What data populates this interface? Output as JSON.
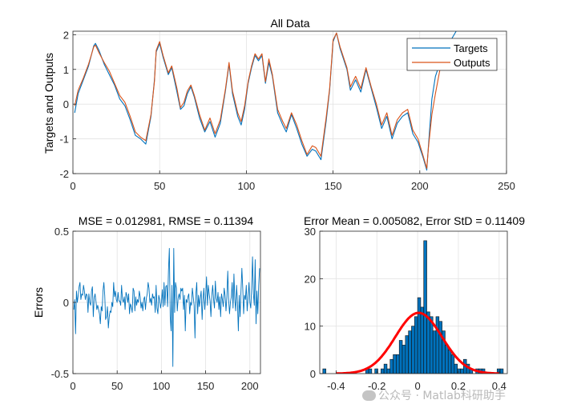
{
  "chart_data": [
    {
      "type": "line",
      "title": "All Data",
      "xlabel": "",
      "ylabel": "Targets and Outputs",
      "xlim": [
        0,
        250
      ],
      "ylim": [
        -2,
        2.1
      ],
      "xticks": [
        0,
        50,
        100,
        150,
        200,
        250
      ],
      "yticks": [
        -2,
        -1,
        0,
        1,
        2
      ],
      "grid": true,
      "legend": "top-right",
      "series": [
        {
          "name": "Targets",
          "color": "#0072BD",
          "x": [
            1,
            3,
            6,
            9,
            12,
            13,
            15,
            18,
            21,
            24,
            27,
            30,
            33,
            36,
            39,
            42,
            45,
            47,
            48,
            50,
            52,
            55,
            57,
            60,
            62,
            64,
            66,
            68,
            70,
            73,
            76,
            79,
            82,
            85,
            88,
            90,
            92,
            95,
            97,
            99,
            101,
            103,
            105,
            107,
            109,
            111,
            113,
            115,
            118,
            121,
            123,
            126,
            129,
            132,
            135,
            138,
            140,
            143,
            146,
            148,
            150,
            152,
            154,
            156,
            158,
            160,
            163,
            166,
            169,
            172,
            175,
            178,
            181,
            184,
            187,
            190,
            193,
            196,
            199,
            202,
            204,
            205,
            207,
            209,
            212,
            215,
            218,
            221
          ],
          "y": [
            -0.25,
            0.3,
            0.7,
            1.1,
            1.68,
            1.75,
            1.55,
            1.15,
            0.85,
            0.55,
            0.15,
            -0.05,
            -0.45,
            -0.9,
            -1.0,
            -1.15,
            -0.35,
            0.7,
            1.5,
            1.75,
            1.35,
            0.85,
            1.05,
            0.35,
            -0.15,
            -0.05,
            0.3,
            0.5,
            0.2,
            -0.4,
            -0.8,
            -0.5,
            -0.95,
            -0.55,
            0.4,
            1.15,
            0.3,
            -0.35,
            -0.6,
            -0.15,
            0.6,
            1.05,
            1.4,
            1.25,
            1.4,
            0.6,
            1.2,
            0.8,
            -0.25,
            -0.6,
            -0.8,
            -0.3,
            -0.7,
            -1.15,
            -1.5,
            -1.3,
            -1.35,
            -1.6,
            -0.5,
            0.4,
            1.8,
            2.05,
            1.6,
            1.3,
            1.0,
            0.4,
            0.7,
            0.35,
            1.0,
            0.45,
            -0.1,
            -0.7,
            -0.35,
            -1.0,
            -0.55,
            -0.35,
            -0.25,
            -0.85,
            -1.1,
            -1.55,
            -1.9,
            -1.2,
            0.15,
            0.8,
            1.25,
            1.6,
            1.85,
            2.1
          ]
        },
        {
          "name": "Outputs",
          "color": "#D95319",
          "x": [
            1,
            3,
            6,
            9,
            12,
            13,
            15,
            18,
            21,
            24,
            27,
            30,
            33,
            36,
            39,
            42,
            45,
            47,
            48,
            50,
            52,
            55,
            57,
            60,
            62,
            64,
            66,
            68,
            70,
            73,
            76,
            79,
            82,
            85,
            88,
            90,
            92,
            95,
            97,
            99,
            101,
            103,
            105,
            107,
            109,
            111,
            113,
            115,
            118,
            121,
            123,
            126,
            129,
            132,
            135,
            138,
            140,
            143,
            146,
            148,
            150,
            152,
            154,
            156,
            158,
            160,
            163,
            166,
            169,
            172,
            175,
            178,
            181,
            184,
            187,
            190,
            193,
            196,
            199,
            202,
            204,
            205,
            207,
            209,
            212
          ],
          "y": [
            -0.05,
            0.4,
            0.75,
            1.15,
            1.65,
            1.7,
            1.48,
            1.2,
            0.95,
            0.6,
            0.25,
            0.05,
            -0.35,
            -0.8,
            -0.95,
            -1.05,
            -0.3,
            0.65,
            1.55,
            1.8,
            1.4,
            0.9,
            1.1,
            0.45,
            -0.1,
            0.05,
            0.38,
            0.55,
            0.25,
            -0.3,
            -0.75,
            -0.4,
            -0.85,
            -0.45,
            0.45,
            1.2,
            0.38,
            -0.25,
            -0.5,
            -0.05,
            0.65,
            1.1,
            1.45,
            1.3,
            1.45,
            0.65,
            1.3,
            0.85,
            -0.15,
            -0.5,
            -0.7,
            -0.25,
            -0.6,
            -1.05,
            -1.45,
            -1.2,
            -1.25,
            -1.5,
            -0.4,
            0.45,
            1.85,
            2.05,
            1.65,
            1.35,
            1.05,
            0.5,
            0.8,
            0.45,
            1.05,
            0.5,
            0.0,
            -0.6,
            -0.25,
            -0.9,
            -0.45,
            -0.25,
            -0.15,
            -0.75,
            -1.0,
            -1.5,
            -1.85,
            -1.25,
            -0.3,
            0.3,
            1.1
          ]
        }
      ]
    },
    {
      "type": "line",
      "title": "MSE = 0.012981, RMSE = 0.11394",
      "xlabel": "",
      "ylabel": "Errors",
      "xlim": [
        0,
        212
      ],
      "ylim": [
        -0.5,
        0.5
      ],
      "xticks": [
        0,
        50,
        100,
        150,
        200
      ],
      "yticks": [
        -0.5,
        0,
        0.5
      ],
      "grid": true,
      "series": [
        {
          "color": "#0072BD",
          "y": [
            -0.05,
            0.02,
            -0.22,
            0.08,
            0.0,
            0.05,
            0.11,
            0.14,
            0.02,
            0.06,
            0.05,
            0.12,
            0.08,
            0.02,
            0.06,
            0.05,
            -0.07,
            0.06,
            0.0,
            -0.02,
            0.08,
            0.11,
            -0.1,
            0.03,
            0.06,
            0.01,
            -0.05,
            -0.02,
            -0.05,
            -0.08,
            -0.15,
            -0.03,
            -0.06,
            0.08,
            0.14,
            0.05,
            -0.12,
            -0.1,
            -0.03,
            -0.18,
            -0.1,
            -0.06,
            -0.07,
            0.0,
            -0.03,
            0.14,
            0.04,
            0.08,
            0.02,
            0.0,
            0.07,
            0.01,
            0.01,
            -0.02,
            0.12,
            0.02,
            0.0,
            0.04,
            -0.05,
            0.07,
            0.05,
            0.0,
            0.06,
            -0.08,
            -0.01,
            -0.03,
            -0.07,
            0.1,
            0.08,
            -0.06,
            0.04,
            -0.02,
            0.02,
            0.0,
            0.08,
            0.04,
            -0.04,
            0.0,
            -0.06,
            0.02,
            0.04,
            -0.05,
            0.03,
            0.06,
            0.14,
            0.1,
            0.0,
            0.03,
            -0.02,
            0.06,
            0.03,
            0.04,
            -0.07,
            0.12,
            -0.04,
            -0.08,
            0.05,
            0.02,
            -0.04,
            0.0,
            0.09,
            -0.03,
            0.14,
            -0.02,
            0.11,
            0.12,
            -0.03,
            0.22,
            0.38,
            -0.1,
            -0.2,
            0.12,
            -0.45,
            0.38,
            -0.07,
            0.14,
            0.1,
            -0.06,
            0.03,
            0.06,
            0.02,
            0.1,
            0.08,
            0.1,
            -0.05,
            0.05,
            -0.2,
            0.02,
            0.0,
            0.04,
            0.06,
            -0.08,
            0.0,
            -0.02,
            0.1,
            0.04,
            -0.02,
            -0.25,
            0.06,
            0.14,
            -0.08,
            0.05,
            -0.03,
            0.03,
            0.08,
            -0.12,
            0.02,
            0.1,
            -0.05,
            0.04,
            0.18,
            -0.02,
            0.12,
            0.06,
            0.01,
            -0.1,
            0.05,
            0.12,
            0.02,
            -0.04,
            0.15,
            0.03,
            0.0,
            0.07,
            -0.05,
            0.04,
            -0.1,
            0.06,
            0.02,
            -0.03,
            0.1,
            0.05,
            -0.06,
            0.04,
            0.22,
            0.02,
            -0.08,
            0.0,
            0.04,
            0.14,
            -0.04,
            0.2,
            0.02,
            -0.06,
            0.12,
            0.0,
            -0.2,
            0.05,
            -0.1,
            0.08,
            0.24,
            0.1,
            -0.08,
            0.05,
            0.02,
            0.12,
            -0.06,
            0.03,
            0.14,
            0.0,
            -0.04,
            0.1,
            0.32,
            0.06,
            -0.02,
            0.3,
            -0.15,
            0.08,
            -0.08,
            0.12,
            0.24
          ]
        }
      ]
    },
    {
      "type": "bar",
      "title": "Error Mean = 0.005082, Error StD = 0.11409",
      "xlabel": "",
      "ylabel": "",
      "xlim": [
        -0.48,
        0.44
      ],
      "ylim": [
        0,
        30
      ],
      "xticks": [
        -0.4,
        -0.2,
        0,
        0.2,
        0.4
      ],
      "yticks": [
        0,
        10,
        20,
        30
      ],
      "grid": true,
      "bar_color": "#0072BD",
      "fit_color": "#FF0000",
      "bin_edges": [
        -0.465,
        -0.45,
        -0.435,
        -0.42,
        -0.405,
        -0.39,
        -0.375,
        -0.36,
        -0.345,
        -0.33,
        -0.315,
        -0.3,
        -0.285,
        -0.27,
        -0.255,
        -0.24,
        -0.225,
        -0.21,
        -0.195,
        -0.18,
        -0.165,
        -0.15,
        -0.135,
        -0.12,
        -0.105,
        -0.09,
        -0.075,
        -0.06,
        -0.045,
        -0.03,
        -0.015,
        0.0,
        0.015,
        0.03,
        0.045,
        0.06,
        0.075,
        0.09,
        0.105,
        0.12,
        0.135,
        0.15,
        0.165,
        0.18,
        0.195,
        0.21,
        0.225,
        0.24,
        0.255,
        0.27,
        0.285,
        0.3,
        0.315,
        0.33,
        0.345,
        0.36,
        0.375,
        0.39,
        0.405,
        0.42
      ],
      "counts": [
        1,
        0,
        0,
        0,
        0,
        0,
        0,
        0,
        0,
        0,
        0,
        0,
        0,
        0,
        1,
        1,
        0,
        1,
        0,
        1,
        2,
        1,
        3,
        4,
        4,
        7,
        6,
        8,
        9,
        10,
        12,
        16,
        14,
        28,
        13,
        12,
        9,
        12,
        11,
        9,
        6,
        5,
        4,
        2,
        1,
        1,
        3,
        2,
        1,
        0,
        1,
        1,
        1,
        0,
        0,
        0,
        0,
        1,
        1
      ],
      "fit": {
        "mean": 0.005082,
        "std": 0.11409,
        "peak": 12.8
      }
    }
  ]
}
